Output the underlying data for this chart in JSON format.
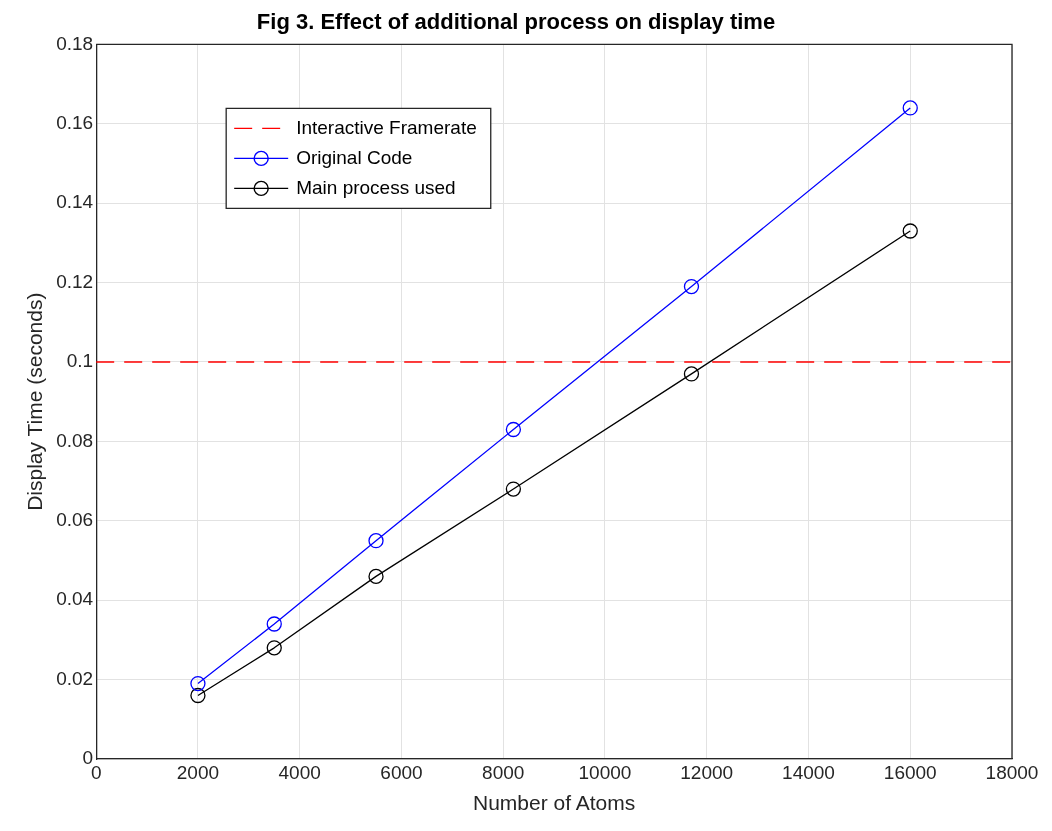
{
  "chart_data": {
    "type": "line",
    "title": "Fig 3. Effect of additional process on display time",
    "xlabel": "Number of Atoms",
    "ylabel": "Display Time (seconds)",
    "x": [
      2000,
      3500,
      5500,
      8200,
      11700,
      16000
    ],
    "series": [
      {
        "name": "Original Code",
        "color": "#0000ff",
        "values": [
          0.019,
          0.034,
          0.055,
          0.083,
          0.119,
          0.164
        ]
      },
      {
        "name": "Main process used",
        "color": "#000000",
        "values": [
          0.016,
          0.028,
          0.046,
          0.068,
          0.097,
          0.133
        ]
      }
    ],
    "ref_lines": [
      {
        "axis": "y",
        "value": 0.1,
        "label": "Interactive Framerate",
        "color": "#ff0000",
        "line_style": "dashed"
      }
    ],
    "xlim": [
      0,
      18000
    ],
    "xticks": [
      0,
      2000,
      4000,
      6000,
      8000,
      10000,
      12000,
      14000,
      16000,
      18000
    ],
    "ylim": [
      0,
      0.18
    ],
    "yticks": [
      0,
      0.02,
      0.04,
      0.06,
      0.08,
      0.1,
      0.12,
      0.14,
      0.16,
      0.18
    ],
    "grid": true,
    "legend": "top left",
    "marker": "circle",
    "line_style": "solid"
  }
}
